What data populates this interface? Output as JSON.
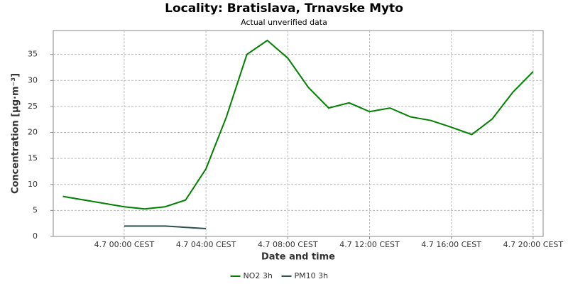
{
  "chart_data": {
    "type": "line",
    "title": "Locality: Bratislava, Trnavske Myto",
    "subtitle": "Actual unverified data",
    "x_label": "Date and time",
    "y_label": "Concentration [µg·m⁻³]",
    "xlim": [
      -3.47,
      20.49
    ],
    "xticks": [
      {
        "value": 0,
        "label": "4.7 00:00 CEST"
      },
      {
        "value": 4,
        "label": "4.7 04:00 CEST"
      },
      {
        "value": 8,
        "label": "4.7 08:00 CEST"
      },
      {
        "value": 12,
        "label": "4.7 12:00 CEST"
      },
      {
        "value": 16,
        "label": "4.7 16:00 CEST"
      },
      {
        "value": 20,
        "label": "4.7 20:00 CEST"
      }
    ],
    "ylim": [
      0,
      39.6
    ],
    "yticks": [
      0,
      5,
      10,
      15,
      20,
      25,
      30,
      35
    ],
    "grid": true,
    "legend": "bottom",
    "series": [
      {
        "name": "NO2 3h",
        "color": "#008000",
        "x": [
          -3,
          0,
          1,
          2,
          3,
          4,
          5,
          6,
          7,
          8,
          9,
          10,
          11,
          12,
          13,
          14,
          15,
          16,
          17,
          18,
          19,
          20
        ],
        "values": [
          7.7,
          5.7,
          5.3,
          5.7,
          7.0,
          13.0,
          23.0,
          35.0,
          37.7,
          34.3,
          28.7,
          24.7,
          25.7,
          24.0,
          24.7,
          23.0,
          22.3,
          21.0,
          19.6,
          22.6,
          27.7,
          31.7
        ]
      },
      {
        "name": "PM10 3h",
        "color": "#2f4f4f",
        "x": [
          0,
          1,
          2,
          4
        ],
        "values": [
          2.0,
          2.0,
          2.0,
          1.5
        ]
      }
    ]
  }
}
